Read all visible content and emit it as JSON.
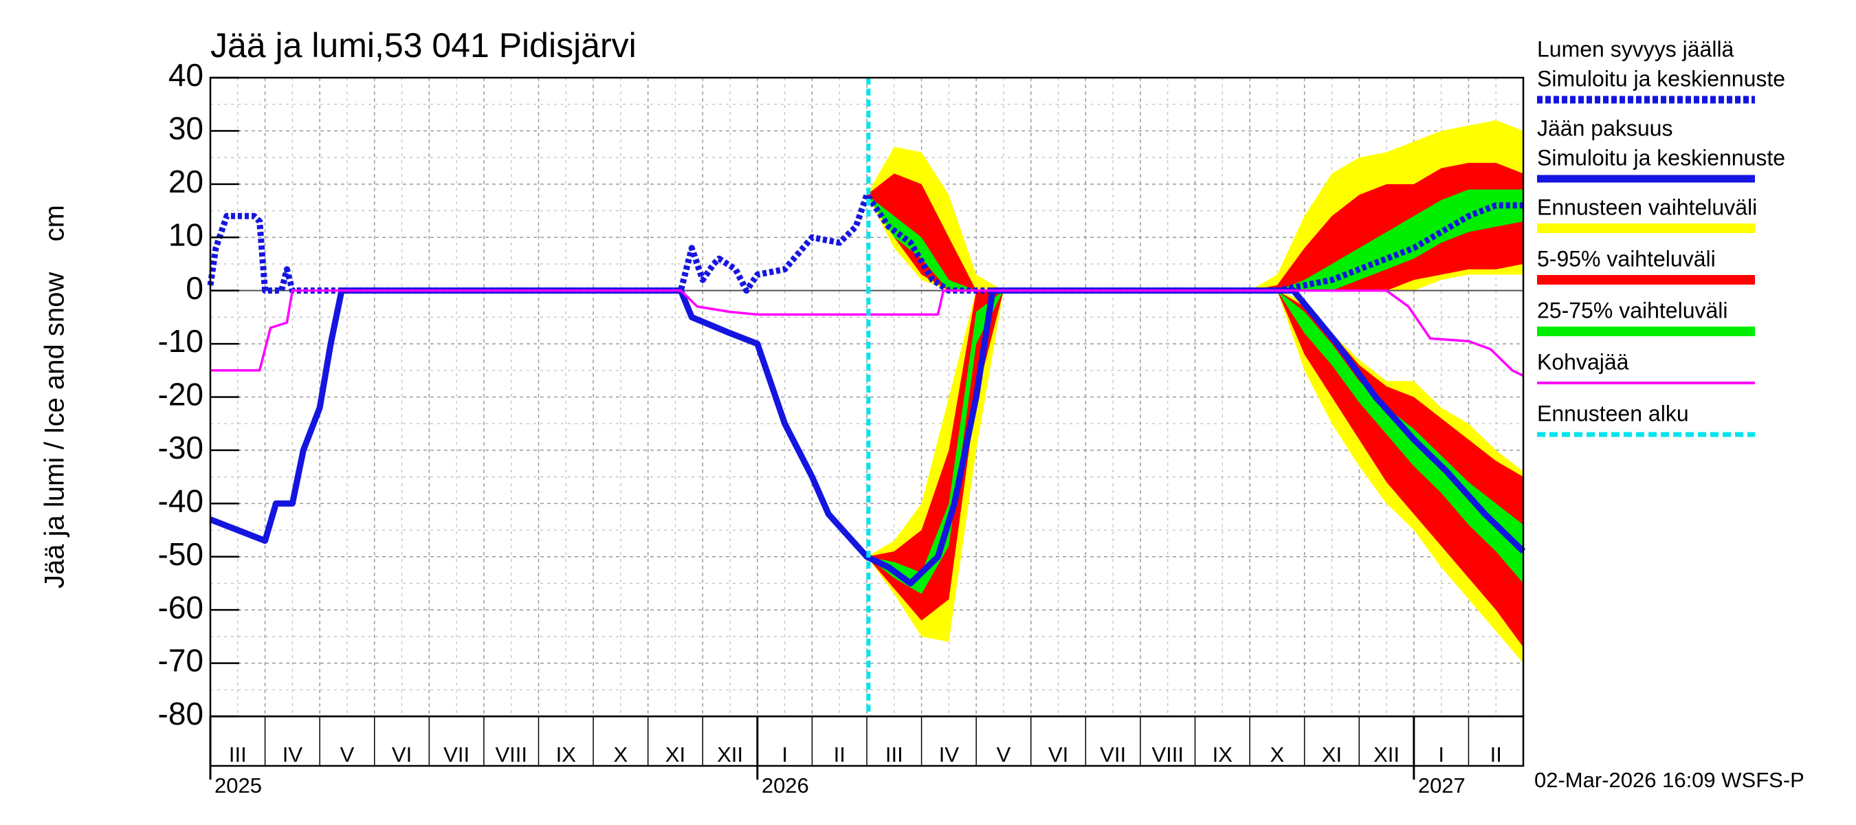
{
  "chart_data": {
    "type": "line",
    "title": "Jää ja lumi,53 041 Pidisjärvi",
    "y_label": "Jää ja lumi / Ice and snow    cm",
    "footer": "02-Mar-2026 16:09 WSFS-P",
    "xlim": [
      0,
      24
    ],
    "ylim": [
      -80,
      40
    ],
    "yticks": [
      -80,
      -70,
      -60,
      -50,
      -40,
      -30,
      -20,
      -10,
      0,
      10,
      20,
      30,
      40
    ],
    "xticks": [
      {
        "value": 0.5,
        "label": "III"
      },
      {
        "value": 1.5,
        "label": "IV"
      },
      {
        "value": 2.5,
        "label": "V"
      },
      {
        "value": 3.5,
        "label": "VI"
      },
      {
        "value": 4.5,
        "label": "VII"
      },
      {
        "value": 5.5,
        "label": "VIII"
      },
      {
        "value": 6.5,
        "label": "IX"
      },
      {
        "value": 7.5,
        "label": "X"
      },
      {
        "value": 8.5,
        "label": "XI"
      },
      {
        "value": 9.5,
        "label": "XII"
      },
      {
        "value": 10.5,
        "label": "I"
      },
      {
        "value": 11.5,
        "label": "II"
      },
      {
        "value": 12.5,
        "label": "III"
      },
      {
        "value": 13.5,
        "label": "IV"
      },
      {
        "value": 14.5,
        "label": "V"
      },
      {
        "value": 15.5,
        "label": "VI"
      },
      {
        "value": 16.5,
        "label": "VII"
      },
      {
        "value": 17.5,
        "label": "VIII"
      },
      {
        "value": 18.5,
        "label": "IX"
      },
      {
        "value": 19.5,
        "label": "X"
      },
      {
        "value": 20.5,
        "label": "XI"
      },
      {
        "value": 21.5,
        "label": "XII"
      },
      {
        "value": 22.5,
        "label": "I"
      },
      {
        "value": 23.5,
        "label": "II"
      }
    ],
    "year_ticks": [
      {
        "value": 0,
        "label": "2025"
      },
      {
        "value": 10,
        "label": "2026"
      },
      {
        "value": 22,
        "label": "2027"
      }
    ],
    "grid": true,
    "band_x": [
      12,
      12.5,
      13,
      13.5,
      14,
      14.5,
      15,
      15.5,
      16,
      16.5,
      17,
      17.5,
      18,
      18.5,
      19,
      19.5,
      20,
      20.5,
      21,
      21.5,
      22,
      22.5,
      23,
      23.5,
      24
    ],
    "bands": [
      {
        "name": "Ennusteen vaihteluväli",
        "color": "#ffff00",
        "ranges": [
          {
            "low": [
              18,
              8,
              2,
              0,
              0,
              0,
              0,
              0,
              0,
              0,
              0,
              0,
              0,
              0,
              0,
              0,
              0,
              0,
              0,
              0,
              0,
              2,
              3,
              3,
              3
            ],
            "high": [
              18,
              27,
              26,
              18,
              3,
              0,
              0,
              0,
              0,
              0,
              0,
              0,
              0,
              0,
              0,
              3,
              14,
              22,
              25,
              26,
              28,
              30,
              31,
              32,
              30
            ]
          },
          {
            "low": [
              -50,
              -57,
              -65,
              -66,
              -30,
              0,
              0,
              0,
              0,
              0,
              0,
              0,
              0,
              0,
              0,
              0,
              -15,
              -25,
              -33,
              -40,
              -45,
              -52,
              -58,
              -64,
              -70
            ],
            "high": [
              -50,
              -47,
              -40,
              -20,
              0,
              0,
              0,
              0,
              0,
              0,
              0,
              0,
              0,
              0,
              0,
              0,
              -2,
              -8,
              -13,
              -17,
              -17,
              -22,
              -25,
              -30,
              -34
            ]
          }
        ]
      },
      {
        "name": "5-95% vaihteluväli",
        "color": "#ff0000",
        "ranges": [
          {
            "low": [
              18,
              10,
              3,
              0,
              0,
              0,
              0,
              0,
              0,
              0,
              0,
              0,
              0,
              0,
              0,
              0,
              0,
              0,
              0,
              0,
              2,
              3,
              4,
              4,
              5
            ],
            "high": [
              18,
              22,
              20,
              10,
              0,
              0,
              0,
              0,
              0,
              0,
              0,
              0,
              0,
              0,
              0,
              1,
              8,
              14,
              18,
              20,
              20,
              23,
              24,
              24,
              22
            ]
          },
          {
            "low": [
              -50,
              -56,
              -62,
              -58,
              -20,
              0,
              0,
              0,
              0,
              0,
              0,
              0,
              0,
              0,
              0,
              0,
              -12,
              -20,
              -28,
              -36,
              -42,
              -48,
              -54,
              -60,
              -67
            ],
            "high": [
              -50,
              -49,
              -45,
              -30,
              0,
              0,
              0,
              0,
              0,
              0,
              0,
              0,
              0,
              0,
              0,
              0,
              -3,
              -8,
              -14,
              -18,
              -20,
              -24,
              -28,
              -32,
              -35
            ]
          }
        ]
      },
      {
        "name": "25-75% vaihteluväli",
        "color": "#00ee00",
        "ranges": [
          {
            "low": [
              18,
              10,
              6,
              0,
              0,
              0,
              0,
              0,
              0,
              0,
              0,
              0,
              0,
              0,
              0,
              0,
              0,
              0,
              2,
              4,
              6,
              9,
              11,
              12,
              13
            ],
            "high": [
              18,
              14,
              10,
              2,
              0,
              0,
              0,
              0,
              0,
              0,
              0,
              0,
              0,
              0,
              0,
              0,
              2,
              5,
              8,
              11,
              14,
              17,
              19,
              19,
              19
            ]
          },
          {
            "low": [
              -50,
              -54,
              -57,
              -48,
              -10,
              0,
              0,
              0,
              0,
              0,
              0,
              0,
              0,
              0,
              0,
              0,
              -8,
              -14,
              -21,
              -27,
              -33,
              -38,
              -44,
              -49,
              -55
            ],
            "high": [
              -50,
              -51,
              -53,
              -40,
              -4,
              0,
              0,
              0,
              0,
              0,
              0,
              0,
              0,
              0,
              0,
              0,
              -4,
              -10,
              -17,
              -22,
              -26,
              -31,
              -36,
              -40,
              -44
            ]
          }
        ]
      }
    ],
    "series": [
      {
        "name": "Lumen syvyys jäällä",
        "note": "Simuloitu ja keskiennuste",
        "color": "#1515e0",
        "dashed": true,
        "x": [
          0,
          0.1,
          0.3,
          0.8,
          0.9,
          1.0,
          1.3,
          1.4,
          1.5,
          8.6,
          8.8,
          9.0,
          9.2,
          9.3,
          9.6,
          9.8,
          10.0,
          10.5,
          11.0,
          11.5,
          11.8,
          12.0,
          12.4,
          12.8,
          13.2,
          13.5,
          19.5,
          20.0,
          20.5,
          21.0,
          21.5,
          22.0,
          22.5,
          23.0,
          23.5,
          24.0
        ],
        "values": [
          1,
          8,
          14,
          14,
          13,
          0,
          0,
          4,
          0,
          0,
          8,
          2,
          5,
          6,
          4,
          0,
          3,
          4,
          10,
          9,
          12,
          18,
          12,
          9,
          2,
          0,
          0,
          1,
          2,
          4,
          6,
          8,
          11,
          14,
          16,
          16
        ]
      },
      {
        "name": "Jään paksuus",
        "note": "Simuloitu ja keskiennuste",
        "color": "#1515e0",
        "dashed": false,
        "x": [
          0,
          1.0,
          1.2,
          1.5,
          1.7,
          2.0,
          2.2,
          2.4,
          8.6,
          8.8,
          9.5,
          10.0,
          10.5,
          11.0,
          11.3,
          12.0,
          12.4,
          12.8,
          13.3,
          13.6,
          14.0,
          14.3,
          19.8,
          20.2,
          20.6,
          21.3,
          22.0,
          22.6,
          23.3,
          24.0
        ],
        "values": [
          -43,
          -47,
          -40,
          -40,
          -30,
          -22,
          -10,
          0,
          0,
          -5,
          -8,
          -10,
          -25,
          -35,
          -42,
          -50,
          -52,
          -55,
          -50,
          -40,
          -20,
          0,
          0,
          -5,
          -10,
          -20,
          -28,
          -34,
          -42,
          -49
        ]
      },
      {
        "name": "Kohvajää",
        "color": "#ff00ff",
        "dashed": false,
        "x": [
          0,
          0.9,
          1.1,
          1.4,
          1.5,
          8.6,
          8.9,
          9.5,
          10.0,
          13.3,
          13.4,
          21.5,
          21.9,
          22.3,
          23.0,
          23.4,
          23.8,
          24.0
        ],
        "values": [
          -15,
          -15,
          -7,
          -6,
          0,
          0,
          -3,
          -4,
          -4.5,
          -4.5,
          0,
          0,
          -3,
          -9,
          -9.5,
          -11,
          -15,
          -16
        ]
      }
    ],
    "forecast_start": {
      "name": "Ennusteen alku",
      "x": 12.03,
      "color": "#00e5ee"
    }
  }
}
